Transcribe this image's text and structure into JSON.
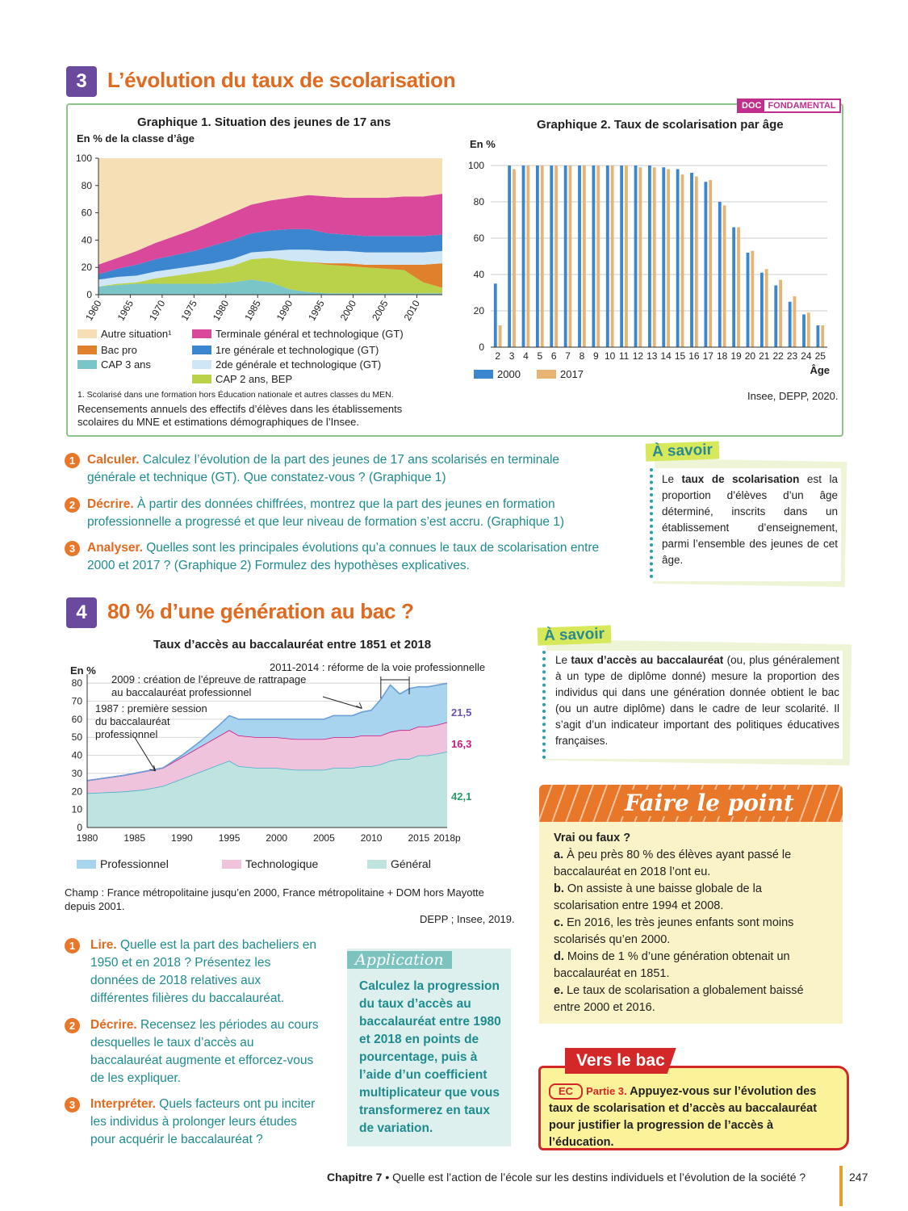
{
  "section3": {
    "num": "3",
    "title": "L’évolution du taux de scolarisation",
    "badge": {
      "doc": "DOC",
      "label": "FONDAMENTAL"
    },
    "graph1": {
      "title": "Graphique 1. Situation des jeunes de 17 ans",
      "ylabel": "En % de la classe d’âge",
      "legend": [
        {
          "label": "Autre situation¹",
          "color": "#f7dfb5"
        },
        {
          "label": "Bac pro",
          "color": "#e0802d"
        },
        {
          "label": "CAP 3 ans",
          "color": "#79c5c8"
        },
        {
          "label": "Terminale général et technologique (GT)",
          "color": "#d9489b"
        },
        {
          "label": "1re générale et technologique (GT)",
          "color": "#3b86cf"
        },
        {
          "label": "2de générale et technologique (GT)",
          "color": "#cfe6f6"
        },
        {
          "label": "CAP 2 ans, BEP",
          "color": "#b9d24a"
        }
      ],
      "footnote": "1. Scolarisé dans une formation hors Éducation nationale et autres classes du MEN.",
      "source": "Recensements annuels des effectifs d’élèves dans les établissements scolaires du MNE et estimations démographiques de l’Insee."
    },
    "graph2": {
      "title": "Graphique 2. Taux de scolarisation par âge",
      "ylabel": "En %",
      "xlabel": "Âge",
      "legend": [
        "2000",
        "2017"
      ],
      "source": "Insee, DEPP, 2020."
    },
    "questions": [
      {
        "n": "1",
        "label": "Calculer.",
        "text": " Calculez l’évolution de la part des jeunes de 17 ans scolarisés en terminale générale et technique (GT). Que constatez-vous ? (Graphique 1)"
      },
      {
        "n": "2",
        "label": "Décrire.",
        "text": " À partir des données chiffrées, montrez que la part des jeunes en formation professionnelle a progressé et que leur niveau de formation s’est accru. (Graphique 1)"
      },
      {
        "n": "3",
        "label": "Analyser.",
        "text": " Quelles sont les principales évolutions qu’a connues le taux de scolarisation entre 2000 et 2017 ? (Graphique 2) Formulez des hypothèses explicatives."
      }
    ],
    "savoir": {
      "tag": "À savoir",
      "pre": "Le ",
      "bold": "taux de scolarisation",
      "post": " est la proportion d’élèves d’un âge déterminé, inscrits dans un établissement d’enseignement, parmi l’ensemble des jeunes de cet âge."
    }
  },
  "section4": {
    "num": "4",
    "title": "80 % d’une génération au bac ?",
    "chart_title": "Taux d’accès au baccalauréat entre 1851 et 2018",
    "ylabel": "En %",
    "annotations": {
      "a2011": "2011-2014 : réforme de la voie professionnelle",
      "a2009_line1": "2009 : création de l’épreuve de rattrapage",
      "a2009_line2": "au baccalauréat professionnel",
      "a1987_line1": "1987 : première session",
      "a1987_line2": "du baccalauréat",
      "a1987_line3": "professionnel"
    },
    "end_labels": {
      "pro": "21,5",
      "techno": "16,3",
      "gen": "42,1"
    },
    "legend": [
      {
        "label": "Professionnel",
        "color": "#a8d4f0"
      },
      {
        "label": "Technologique",
        "color": "#f0c3dc"
      },
      {
        "label": "Général",
        "color": "#bfe3df"
      }
    ],
    "champ": "Champ : France métropolitaine jusqu’en 2000, France métropolitaine + DOM hors Mayotte depuis 2001.",
    "source": "DEPP ; Insee, 2019.",
    "questions": [
      {
        "n": "1",
        "label": "Lire.",
        "text": " Quelle est la part des bacheliers en 1950 et en 2018 ? Présentez les données de 2018 relatives aux différentes filières du baccalauréat."
      },
      {
        "n": "2",
        "label": "Décrire.",
        "text": " Recensez les périodes au cours desquelles le taux d’accès au baccalauréat augmente et efforcez-vous de les expliquer."
      },
      {
        "n": "3",
        "label": "Interpréter.",
        "text": " Quels facteurs ont pu inciter les individus à prolonger leurs études pour acquérir le baccalauréat ?"
      }
    ],
    "application": {
      "tag": "Application",
      "text": "Calculez la progression du taux d’accès au baccalauréat entre 1980 et 2018 en points de pourcentage, puis à l’aide d’un coefficient multiplicateur que vous transformerez en taux de variation."
    },
    "savoir": {
      "tag": "À savoir",
      "pre": "Le ",
      "bold": "taux d’accès au baccalauréat",
      "post": " (ou, plus généralement à un type de diplôme donné) mesure la proportion des individus qui dans une génération donnée obtient le bac (ou un autre diplôme) dans le cadre de leur scolarité. Il s’agit d’un indicateur important des politiques éducatives françaises."
    }
  },
  "faire_le_point": {
    "title": "Faire le point",
    "heading": "Vrai ou faux ?",
    "items": [
      {
        "k": "a.",
        "t": " À peu près 80 % des élèves ayant passé le baccalauréat en 2018 l’ont eu."
      },
      {
        "k": "b.",
        "t": " On assiste à une baisse globale de la scolarisation entre 1994 et 2008."
      },
      {
        "k": "c.",
        "t": " En 2016, les très jeunes enfants sont moins scolarisés qu’en 2000."
      },
      {
        "k": "d.",
        "t": " Moins de 1 % d’une génération obtenait un baccalauréat en 1851."
      },
      {
        "k": "e.",
        "t": " Le taux de scolarisation a globalement baissé entre 2000 et 2016."
      }
    ]
  },
  "vers_le_bac": {
    "tag": "Vers le bac",
    "ec": "EC",
    "part": "Partie 3.",
    "text": " Appuyez-vous sur l’évolution des taux de scolarisation et d’accès au baccalauréat pour justifier la progression de l’accès à l’éducation."
  },
  "footer": {
    "chapter": "Chapitre 7",
    "text": " • Quelle est l’action de l’école sur les destins individuels et l’évolution de la société ?",
    "page": "247"
  },
  "chart_data": [
    {
      "type": "area",
      "title": "Graphique 1. Situation des jeunes de 17 ans",
      "ylabel": "En % de la classe d’âge",
      "ylim": [
        0,
        100
      ],
      "x": [
        1960,
        1963,
        1966,
        1969,
        1972,
        1975,
        1978,
        1981,
        1984,
        1987,
        1990,
        1993,
        1996,
        1999,
        2002,
        2005,
        2008,
        2011,
        2014
      ],
      "xticks": [
        "1960",
        "1965",
        "1970",
        "1975",
        "1980",
        "1985",
        "1990",
        "1995",
        "2000",
        "2005",
        "2010"
      ],
      "yticks": [
        0,
        20,
        40,
        60,
        80,
        100
      ],
      "series": [
        {
          "name": "CAP 3 ans",
          "values": [
            6,
            7,
            8,
            8,
            8,
            8,
            8,
            9,
            11,
            9,
            4,
            2,
            1,
            1,
            1,
            1,
            1,
            1,
            1
          ]
        },
        {
          "name": "CAP 2 ans, BEP",
          "values": [
            0,
            1,
            1,
            4,
            6,
            8,
            10,
            12,
            15,
            18,
            21,
            22,
            21,
            20,
            19,
            18,
            17,
            8,
            4
          ]
        },
        {
          "name": "Bac pro",
          "values": [
            0,
            0,
            0,
            0,
            0,
            0,
            0,
            0,
            0,
            0,
            0,
            0,
            1,
            2,
            2,
            3,
            4,
            13,
            18
          ]
        },
        {
          "name": "2de générale et technologique (GT)",
          "values": [
            5,
            5,
            5,
            5,
            5,
            5,
            5,
            5,
            5,
            5,
            8,
            9,
            9,
            9,
            9,
            9,
            9,
            9,
            9
          ]
        },
        {
          "name": "1re générale et technologique (GT)",
          "values": [
            4,
            6,
            8,
            9,
            10,
            11,
            13,
            14,
            14,
            15,
            15,
            15,
            13,
            12,
            12,
            12,
            12,
            12,
            12
          ]
        },
        {
          "name": "Terminale général et technologique (GT)",
          "values": [
            7,
            8,
            10,
            12,
            14,
            16,
            18,
            20,
            21,
            22,
            23,
            25,
            27,
            27,
            28,
            28,
            29,
            29,
            30
          ]
        },
        {
          "name": "Autre situation¹",
          "values": [
            78,
            73,
            68,
            62,
            57,
            52,
            46,
            40,
            34,
            31,
            29,
            27,
            28,
            29,
            29,
            29,
            28,
            28,
            26
          ]
        }
      ]
    },
    {
      "type": "bar",
      "title": "Graphique 2. Taux de scolarisation par âge",
      "xlabel": "Âge",
      "ylabel": "En %",
      "ylim": [
        0,
        100
      ],
      "yticks": [
        0,
        20,
        40,
        60,
        80,
        100
      ],
      "categories": [
        "2",
        "3",
        "4",
        "5",
        "6",
        "7",
        "8",
        "9",
        "10",
        "11",
        "12",
        "13",
        "14",
        "15",
        "16",
        "17",
        "18",
        "19",
        "20",
        "21",
        "22",
        "23",
        "24",
        "25"
      ],
      "series": [
        {
          "name": "2000",
          "color": "#3b86cf",
          "values": [
            35,
            100,
            100,
            100,
            100,
            100,
            100,
            100,
            100,
            100,
            100,
            100,
            99,
            98,
            96,
            91,
            80,
            66,
            52,
            41,
            34,
            25,
            18,
            12
          ]
        },
        {
          "name": "2017",
          "color": "#e8b473",
          "values": [
            12,
            98,
            100,
            100,
            100,
            100,
            100,
            100,
            100,
            100,
            99,
            99,
            98,
            95,
            94,
            92,
            78,
            66,
            53,
            43,
            37,
            28,
            19,
            12
          ]
        }
      ]
    },
    {
      "type": "area",
      "title": "Taux d’accès au baccalauréat entre 1851 et 2018",
      "ylabel": "En %",
      "ylim": [
        0,
        85
      ],
      "yticks": [
        0,
        10,
        20,
        30,
        40,
        50,
        60,
        70,
        80
      ],
      "xticks": [
        "1980",
        "1985",
        "1990",
        "1995",
        "2000",
        "2005",
        "2010",
        "2015",
        "2018p"
      ],
      "x": [
        1980,
        1982,
        1984,
        1986,
        1988,
        1990,
        1992,
        1994,
        1995,
        1996,
        1998,
        2000,
        2002,
        2004,
        2005,
        2006,
        2008,
        2009,
        2010,
        2011,
        2012,
        2013,
        2014,
        2015,
        2016,
        2017,
        2018
      ],
      "series": [
        {
          "name": "Général",
          "values": [
            19,
            19.5,
            20,
            21,
            23,
            27,
            31,
            35,
            37,
            34,
            33,
            33,
            32,
            32,
            32,
            33,
            33,
            34,
            34,
            35,
            37,
            38,
            38,
            40,
            40,
            41,
            42.1
          ]
        },
        {
          "name": "Technologique",
          "values": [
            7,
            8,
            9,
            10,
            10,
            12,
            14,
            16,
            17,
            17,
            17,
            17,
            17,
            17,
            17,
            17,
            17,
            17,
            17,
            16,
            16,
            16,
            16,
            16,
            16,
            16,
            16.3
          ]
        },
        {
          "name": "Professionnel",
          "values": [
            0,
            0,
            0,
            0,
            0,
            1,
            3,
            6,
            8,
            9,
            10,
            10,
            11,
            11,
            11,
            12,
            12,
            13,
            14,
            20,
            26,
            20,
            23,
            22,
            22,
            22,
            21.5
          ]
        }
      ]
    }
  ]
}
